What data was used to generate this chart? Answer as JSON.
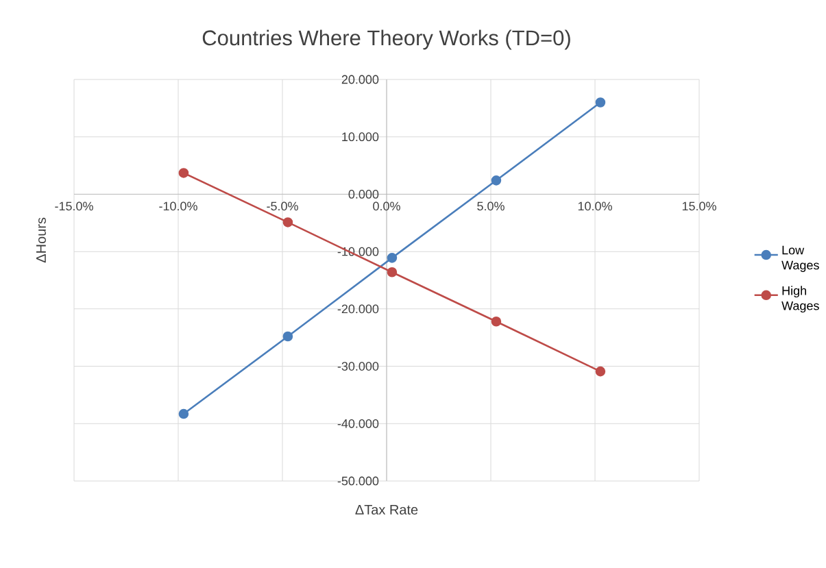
{
  "chart_data": {
    "type": "line",
    "title": "Countries Where Theory Works (TD=0)",
    "xlabel": "ΔTax Rate",
    "ylabel": "ΔHours",
    "x": [
      -9.74,
      -4.74,
      0.26,
      5.26,
      10.26
    ],
    "series": [
      {
        "name": "Low Wages",
        "color": "#4a7ebb",
        "values": [
          -38.3,
          -24.8,
          -11.1,
          2.4,
          16.0
        ]
      },
      {
        "name": "High Wages",
        "color": "#be4b48",
        "values": [
          3.7,
          -4.9,
          -13.6,
          -22.2,
          -30.9
        ]
      }
    ],
    "xlim": [
      -15,
      15
    ],
    "xticks": [
      {
        "value": -15,
        "label": "-15.0%"
      },
      {
        "value": -10,
        "label": "-10.0%"
      },
      {
        "value": -5,
        "label": "-5.0%"
      },
      {
        "value": 0,
        "label": "0.0%"
      },
      {
        "value": 5,
        "label": "5.0%"
      },
      {
        "value": 10,
        "label": "10.0%"
      },
      {
        "value": 15,
        "label": "15.0%"
      }
    ],
    "ylim": [
      -50,
      20
    ],
    "yticks": [
      {
        "value": -50,
        "label": "-50.000"
      },
      {
        "value": -40,
        "label": "-40.000"
      },
      {
        "value": -30,
        "label": "-30.000"
      },
      {
        "value": -20,
        "label": "-20.000"
      },
      {
        "value": -10,
        "label": "-10.000"
      },
      {
        "value": 0,
        "label": "0.000"
      },
      {
        "value": 10,
        "label": "10.000"
      },
      {
        "value": 20,
        "label": "20.000"
      }
    ],
    "grid": true,
    "legend": "right",
    "marker": "circle",
    "line_style": "solid"
  }
}
